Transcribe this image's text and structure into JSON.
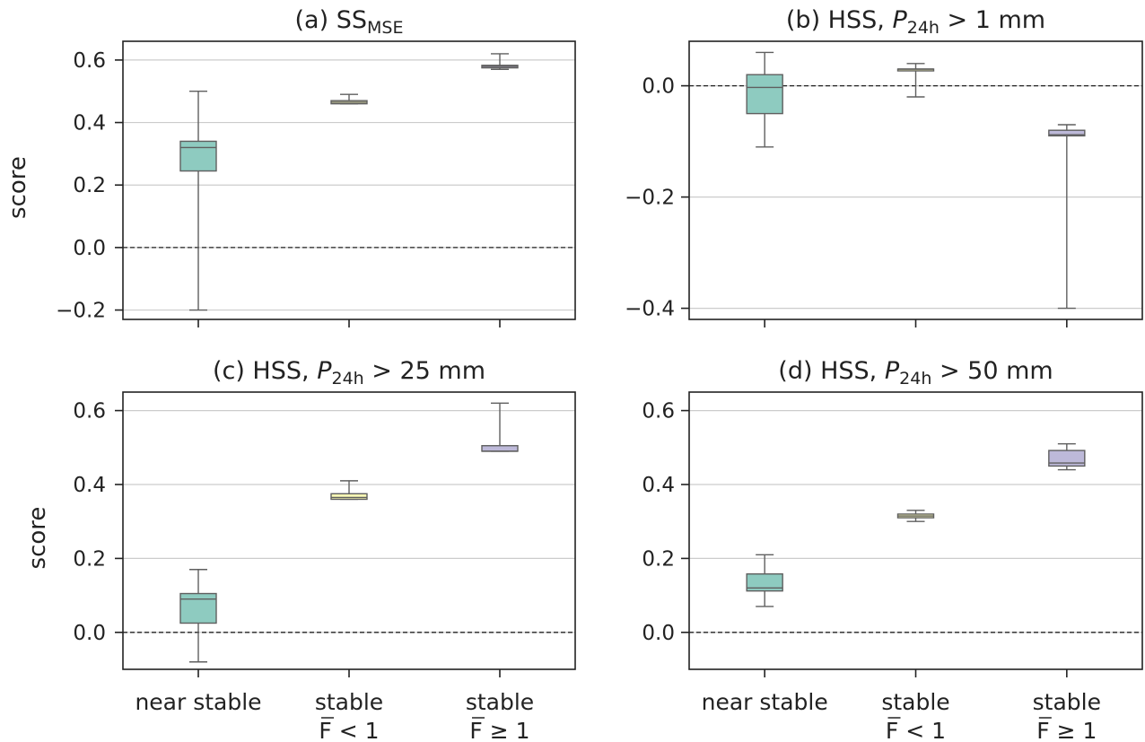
{
  "figure": {
    "ylabel": "score",
    "categories": [
      {
        "line1": "near stable",
        "line2": ""
      },
      {
        "line1": "stable",
        "line2": "F < 1"
      },
      {
        "line1": "stable",
        "line2": "F ≥ 1"
      }
    ],
    "box_colors": [
      "#8ecbc0",
      "#fbfbb6",
      "#bdb9d9"
    ]
  },
  "chart_data": [
    {
      "type": "box",
      "title": "(a) SS",
      "title_sub": "MSE",
      "title_post": "",
      "ylim": [
        -0.23,
        0.66
      ],
      "yticks": [
        -0.2,
        0.0,
        0.2,
        0.4,
        0.6
      ],
      "ytick_labels": [
        "−0.2",
        "0.0",
        "0.2",
        "0.4",
        "0.6"
      ],
      "grid": true,
      "ref_line": 0,
      "boxes": [
        {
          "category": "near stable",
          "min": -0.2,
          "q1": 0.245,
          "median": 0.32,
          "q3": 0.34,
          "max": 0.5
        },
        {
          "category": "stable F < 1",
          "min": 0.46,
          "q1": 0.46,
          "median": 0.465,
          "q3": 0.47,
          "max": 0.49
        },
        {
          "category": "stable F ≥ 1",
          "min": 0.57,
          "q1": 0.575,
          "median": 0.58,
          "q3": 0.583,
          "max": 0.62
        }
      ]
    },
    {
      "type": "box",
      "title": "(b) HSS, ",
      "title_sub": "24h",
      "title_post": " > 1 mm",
      "ylim": [
        -0.42,
        0.08
      ],
      "yticks": [
        -0.4,
        -0.2,
        0.0
      ],
      "ytick_labels": [
        "−0.4",
        "−0.2",
        "0.0"
      ],
      "grid": true,
      "ref_line": 0,
      "boxes": [
        {
          "category": "near stable",
          "min": -0.11,
          "q1": -0.05,
          "median": -0.003,
          "q3": 0.02,
          "max": 0.06
        },
        {
          "category": "stable F < 1",
          "min": -0.02,
          "q1": 0.03,
          "median": 0.03,
          "q3": 0.03,
          "max": 0.04
        },
        {
          "category": "stable F ≥ 1",
          "min": -0.4,
          "q1": -0.09,
          "median": -0.088,
          "q3": -0.08,
          "max": -0.07
        }
      ]
    },
    {
      "type": "box",
      "title": "(c) HSS, ",
      "title_sub": "24h",
      "title_post": " > 25 mm",
      "ylim": [
        -0.1,
        0.65
      ],
      "yticks": [
        0.0,
        0.2,
        0.4,
        0.6
      ],
      "ytick_labels": [
        "0.0",
        "0.2",
        "0.4",
        "0.6"
      ],
      "grid": true,
      "ref_line": 0,
      "boxes": [
        {
          "category": "near stable",
          "min": -0.08,
          "q1": 0.025,
          "median": 0.09,
          "q3": 0.105,
          "max": 0.17
        },
        {
          "category": "stable F < 1",
          "min": 0.36,
          "q1": 0.36,
          "median": 0.365,
          "q3": 0.375,
          "max": 0.41
        },
        {
          "category": "stable F ≥ 1",
          "min": 0.49,
          "q1": 0.49,
          "median": 0.49,
          "q3": 0.505,
          "max": 0.62
        }
      ]
    },
    {
      "type": "box",
      "title": "(d) HSS, ",
      "title_sub": "24h",
      "title_post": " > 50 mm",
      "ylim": [
        -0.1,
        0.65
      ],
      "yticks": [
        0.0,
        0.2,
        0.4,
        0.6
      ],
      "ytick_labels": [
        "0.0",
        "0.2",
        "0.4",
        "0.6"
      ],
      "grid": true,
      "ref_line": 0,
      "boxes": [
        {
          "category": "near stable",
          "min": 0.07,
          "q1": 0.112,
          "median": 0.12,
          "q3": 0.158,
          "max": 0.21
        },
        {
          "category": "stable F < 1",
          "min": 0.3,
          "q1": 0.31,
          "median": 0.315,
          "q3": 0.32,
          "max": 0.33
        },
        {
          "category": "stable F ≥ 1",
          "min": 0.44,
          "q1": 0.45,
          "median": 0.458,
          "q3": 0.492,
          "max": 0.51
        }
      ]
    }
  ]
}
